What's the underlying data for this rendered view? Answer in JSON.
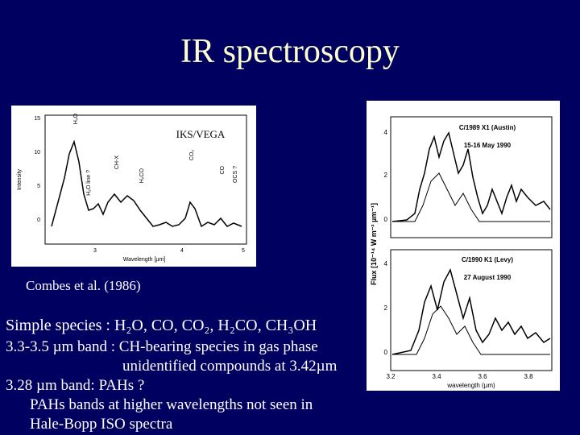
{
  "title": "IR spectroscopy",
  "left_figure": {
    "label": "IKS/VEGA",
    "y_label": "Intensity",
    "x_label": "Wavelength [µm]",
    "yticks": [
      "15",
      "10",
      "5",
      "0"
    ],
    "xticks": [
      "3",
      "4",
      "5"
    ],
    "annotations": [
      "H₂O",
      "H₂O line ?",
      "CH-X",
      "H₂CO",
      "CO₂",
      "CO",
      "OCS ?"
    ],
    "caption": "Combes et al. (1986)"
  },
  "right_figure": {
    "y_label": "Flux [10⁻¹⁴ W m⁻² µm⁻¹]",
    "x_label": "wavelength (µm)",
    "xticks": [
      "3.2",
      "3.4",
      "3.6",
      "3.8"
    ],
    "panels": [
      {
        "name": "C/1989 X1 (Austin)",
        "date": "15-16 May 1990",
        "yticks": [
          "4",
          "2",
          "0"
        ]
      },
      {
        "name": "C/1990 K1 (Levy)",
        "date": "27 August 1990",
        "yticks": [
          "4",
          "2",
          "0"
        ]
      }
    ]
  },
  "text_lines": [
    "Simple species : H₂O, CO, CO₂, H₂CO, CH₃OH",
    "3.3-3.5 µm band :  CH-bearing species in gas phase",
    "unidentified compounds at 3.42µm",
    "3.28 µm band:  PAHs ?",
    "PAHs bands at higher wavelengths not seen in",
    "Hale-Bopp ISO spectra"
  ]
}
